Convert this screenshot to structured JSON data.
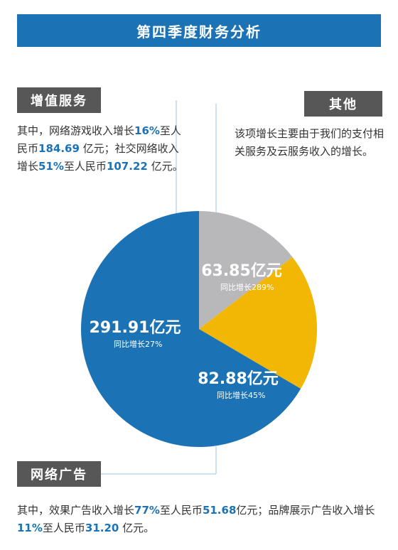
{
  "title": "第四季度财务分析",
  "colors": {
    "value_added": "#1b73b5",
    "advertising": "#f2b705",
    "other": "#b8b8bb",
    "tag_bg": "#575757",
    "highlight": "#1b73b5"
  },
  "sections": {
    "value_added": {
      "tag": "增值服务",
      "text": {
        "p1": "其中，网络游戏收入增长",
        "h1": "16%",
        "p2": "至人民币",
        "h2": "184.69",
        "p3": " 亿元；社交网络收入增长",
        "h3": "51%",
        "p4": "至人民币",
        "h4": "107.22",
        "p5": " 亿元。"
      }
    },
    "other": {
      "tag": "其他",
      "text": "该项增长主要由于我们的支付相关服务及云服务收入的增长。"
    },
    "advertising": {
      "tag": "网络广告",
      "text": {
        "p1": "其中，效果广告收入增长",
        "h1": "77%",
        "p2": "至人民币",
        "h2": "51.68",
        "p3": "亿元；品牌展示广告收入增长",
        "h3": "11%",
        "p4": "至人民币",
        "h4": "31.20",
        "p5": " 亿元。"
      }
    }
  },
  "chart_data": {
    "type": "pie",
    "slices": [
      {
        "key": "other",
        "value": 63.85,
        "value_label": "63.85亿元",
        "growth_label": "同比增长289%",
        "color": "#b8b8bb"
      },
      {
        "key": "advertising",
        "value": 82.88,
        "value_label": "82.88亿元",
        "growth_label": "同比增长45%",
        "color": "#f2b705"
      },
      {
        "key": "value_added",
        "value": 291.91,
        "value_label": "291.91亿元",
        "growth_label": "同比增长27%",
        "color": "#1b73b5"
      }
    ]
  }
}
